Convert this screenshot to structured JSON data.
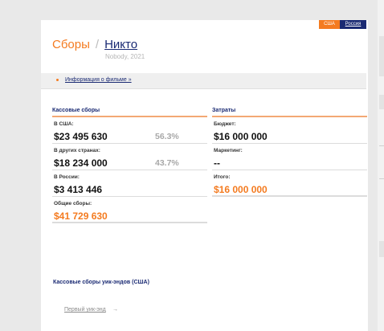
{
  "region_switch": {
    "usa": "США",
    "russia": "Россия"
  },
  "header": {
    "section": "Сборы",
    "slash": "/",
    "film_title": "Никто",
    "subtitle": "Nobody, 2021"
  },
  "info_link": "Информация о фильме »",
  "box_office": {
    "heading": "Кассовые сборы",
    "usa": {
      "label": "В США:",
      "value": "$23 495 630",
      "percent": "56.3%"
    },
    "other": {
      "label": "В других странах:",
      "value": "$18 234 000",
      "percent": "43.7%"
    },
    "russia": {
      "label": "В России:",
      "value": "$3 413 446"
    },
    "total": {
      "label": "Общие сборы:",
      "value": "$41 729 630"
    }
  },
  "costs": {
    "heading": "Затраты",
    "budget": {
      "label": "Бюджет:",
      "value": "$16 000 000"
    },
    "marketing": {
      "label": "Маркетинг:",
      "value": "--"
    },
    "total": {
      "label": "Итого:",
      "value": "$16 000 000"
    }
  },
  "weekends": {
    "title": "Кассовые сборы уик-эндов (США)",
    "first_link": "Первый уик-энд",
    "arrow": "→"
  },
  "colors": {
    "accent": "#f47b20",
    "navy": "#1a2a73"
  }
}
